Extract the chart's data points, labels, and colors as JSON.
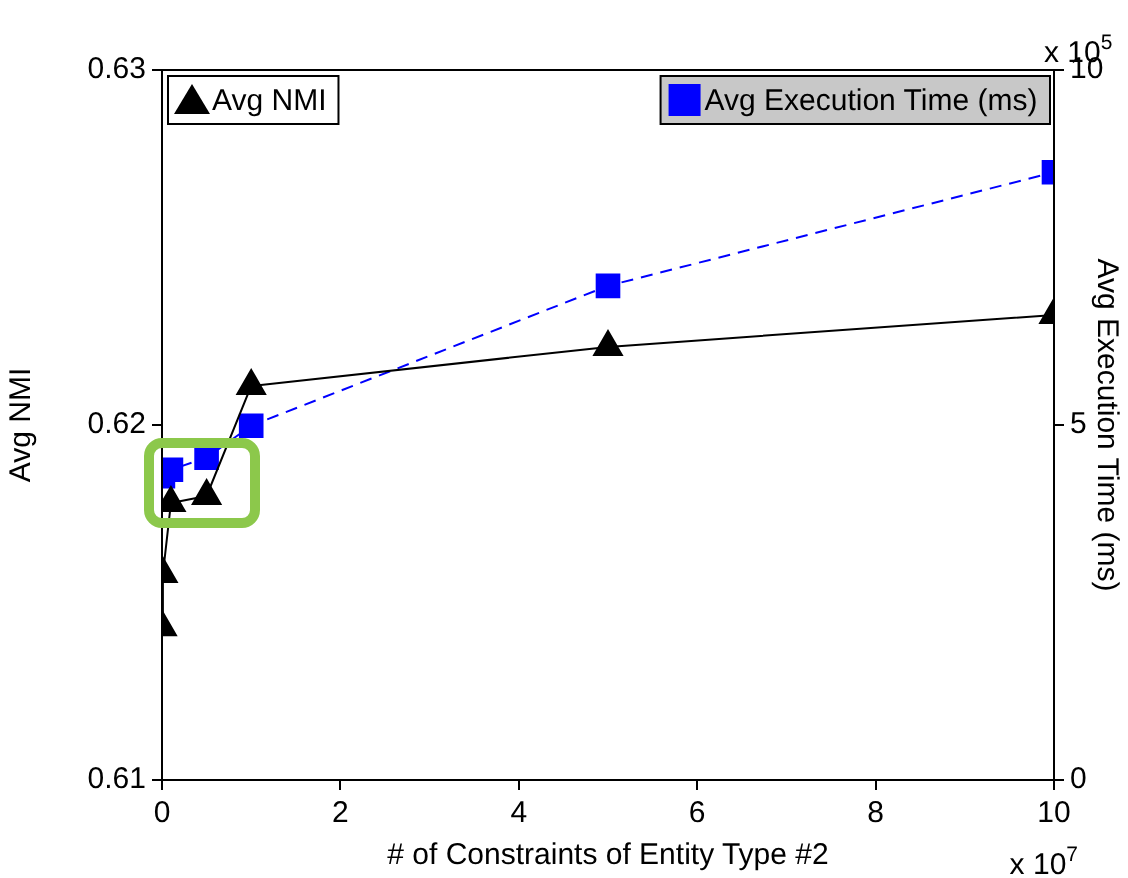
{
  "chart_data": {
    "type": "line",
    "xlabel": "# of Constraints of Entity Type #2",
    "ylabel": "Avg NMI",
    "y2label": "Avg Execution Time (ms)",
    "xlim": [
      0,
      10
    ],
    "xticks": [
      0,
      2,
      4,
      6,
      8,
      10
    ],
    "ylim": [
      0.61,
      0.63
    ],
    "yticks": [
      0.61,
      0.62,
      0.63
    ],
    "y2lim": [
      0,
      10
    ],
    "y2ticks": [
      0,
      5,
      10
    ],
    "grid": false,
    "legend": "top",
    "annotations": [
      "x 10$^{7}$",
      "x 10$^{5}$"
    ],
    "series": [
      {
        "name": "Avg NMI",
        "color": "#000000",
        "marker": "triangle",
        "line_style": "solid",
        "x": [
          0.001,
          0.01,
          0.1,
          0.5,
          1,
          5,
          10
        ],
        "values": [
          0.6143,
          0.6158,
          0.6178,
          0.618,
          0.6211,
          0.6222,
          0.6231
        ]
      },
      {
        "name": "Avg Execution Time (ms)",
        "color": "#0000ff",
        "marker": "square",
        "line_style": "dashed",
        "axis": "y2",
        "x": [
          0.01,
          0.1,
          0.5,
          1,
          5,
          10
        ],
        "values": [
          4.28,
          4.37,
          4.54,
          4.99,
          6.96,
          8.56
        ]
      }
    ]
  }
}
